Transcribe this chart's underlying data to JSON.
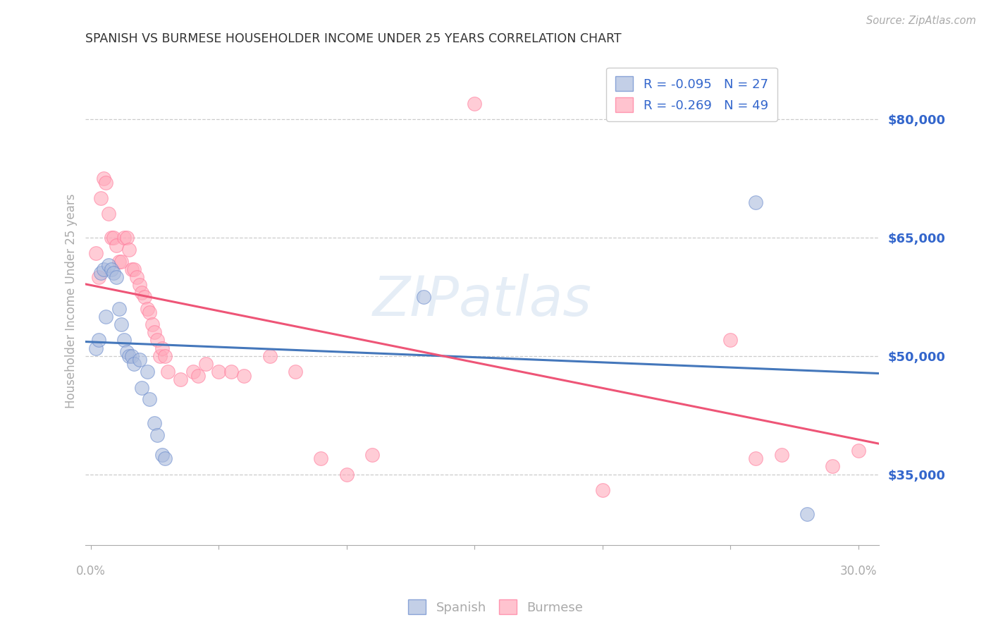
{
  "title": "SPANISH VS BURMESE HOUSEHOLDER INCOME UNDER 25 YEARS CORRELATION CHART",
  "source": "Source: ZipAtlas.com",
  "ylabel": "Householder Income Under 25 years",
  "ytick_labels": [
    "$35,000",
    "$50,000",
    "$65,000",
    "$80,000"
  ],
  "ytick_values": [
    35000,
    50000,
    65000,
    80000
  ],
  "ymin": 26000,
  "ymax": 88000,
  "xmin": -0.002,
  "xmax": 0.308,
  "spanish_color": "#aabbdd",
  "burmese_color": "#ffaabb",
  "spanish_edge_color": "#6688cc",
  "burmese_edge_color": "#ff7799",
  "spanish_line_color": "#4477bb",
  "burmese_line_color": "#ee5577",
  "legend_label_spanish": "R = -0.095   N = 27",
  "legend_label_burmese": "R = -0.269   N = 49",
  "bottom_legend_spanish": "Spanish",
  "bottom_legend_burmese": "Burmese",
  "title_color": "#333333",
  "axis_color": "#aaaaaa",
  "grid_color": "#cccccc",
  "tick_color": "#3366cc",
  "background_color": "#ffffff",
  "watermark": "ZIPatlas",
  "spanish_scatter": [
    [
      0.002,
      51000
    ],
    [
      0.003,
      52000
    ],
    [
      0.004,
      60500
    ],
    [
      0.005,
      61000
    ],
    [
      0.006,
      55000
    ],
    [
      0.007,
      61500
    ],
    [
      0.008,
      61000
    ],
    [
      0.009,
      60500
    ],
    [
      0.01,
      60000
    ],
    [
      0.011,
      56000
    ],
    [
      0.012,
      54000
    ],
    [
      0.013,
      52000
    ],
    [
      0.014,
      50500
    ],
    [
      0.015,
      50000
    ],
    [
      0.016,
      50000
    ],
    [
      0.017,
      49000
    ],
    [
      0.019,
      49500
    ],
    [
      0.02,
      46000
    ],
    [
      0.022,
      48000
    ],
    [
      0.023,
      44500
    ],
    [
      0.025,
      41500
    ],
    [
      0.026,
      40000
    ],
    [
      0.028,
      37500
    ],
    [
      0.029,
      37000
    ],
    [
      0.13,
      57500
    ],
    [
      0.26,
      69500
    ],
    [
      0.28,
      30000
    ]
  ],
  "burmese_scatter": [
    [
      0.002,
      63000
    ],
    [
      0.003,
      60000
    ],
    [
      0.004,
      70000
    ],
    [
      0.005,
      72500
    ],
    [
      0.006,
      72000
    ],
    [
      0.007,
      68000
    ],
    [
      0.008,
      65000
    ],
    [
      0.009,
      65000
    ],
    [
      0.01,
      64000
    ],
    [
      0.011,
      62000
    ],
    [
      0.012,
      62000
    ],
    [
      0.013,
      65000
    ],
    [
      0.014,
      65000
    ],
    [
      0.015,
      63500
    ],
    [
      0.016,
      61000
    ],
    [
      0.017,
      61000
    ],
    [
      0.018,
      60000
    ],
    [
      0.019,
      59000
    ],
    [
      0.02,
      58000
    ],
    [
      0.021,
      57500
    ],
    [
      0.022,
      56000
    ],
    [
      0.023,
      55500
    ],
    [
      0.024,
      54000
    ],
    [
      0.025,
      53000
    ],
    [
      0.026,
      52000
    ],
    [
      0.027,
      50000
    ],
    [
      0.028,
      51000
    ],
    [
      0.029,
      50000
    ],
    [
      0.03,
      48000
    ],
    [
      0.035,
      47000
    ],
    [
      0.04,
      48000
    ],
    [
      0.042,
      47500
    ],
    [
      0.045,
      49000
    ],
    [
      0.05,
      48000
    ],
    [
      0.055,
      48000
    ],
    [
      0.06,
      47500
    ],
    [
      0.07,
      50000
    ],
    [
      0.08,
      48000
    ],
    [
      0.09,
      37000
    ],
    [
      0.1,
      35000
    ],
    [
      0.11,
      37500
    ],
    [
      0.15,
      82000
    ],
    [
      0.2,
      33000
    ],
    [
      0.21,
      82000
    ],
    [
      0.25,
      52000
    ],
    [
      0.26,
      37000
    ],
    [
      0.27,
      37500
    ],
    [
      0.29,
      36000
    ],
    [
      0.3,
      38000
    ]
  ]
}
